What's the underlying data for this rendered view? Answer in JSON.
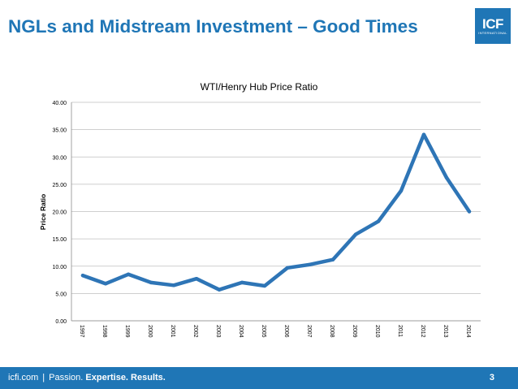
{
  "slide": {
    "title": "NGLs and Midstream Investment – Good Times",
    "logo_text": "ICF",
    "logo_subtext": "INTERNATIONAL"
  },
  "footer": {
    "site": "icfi.com",
    "separator": "|",
    "tagline_plain": "Passion.",
    "tagline_bold": "Expertise. Results.",
    "page_number": "3",
    "background_color": "#1f76b6"
  },
  "chart_data": {
    "type": "line",
    "title": "WTI/Henry Hub Price Ratio",
    "xlabel": "",
    "ylabel": "Price Ratio",
    "x": [
      "1997",
      "1998",
      "1999",
      "2000",
      "2001",
      "2002",
      "2003",
      "2004",
      "2005",
      "2006",
      "2007",
      "2008",
      "2009",
      "2010",
      "2011",
      "2012",
      "2013",
      "2014"
    ],
    "series": [
      {
        "values": [
          8.3,
          6.8,
          8.5,
          7.0,
          6.5,
          7.7,
          5.7,
          7.0,
          6.4,
          9.7,
          10.3,
          11.2,
          15.8,
          18.2,
          23.8,
          34.1,
          26.2,
          20.0
        ],
        "color": "#2e75b6"
      }
    ],
    "ylim": [
      0,
      40
    ],
    "yticks": [
      "0.00",
      "5.00",
      "10.00",
      "15.00",
      "20.00",
      "25.00",
      "30.00",
      "35.00",
      "40.00"
    ],
    "grid": true,
    "legend": "none"
  }
}
